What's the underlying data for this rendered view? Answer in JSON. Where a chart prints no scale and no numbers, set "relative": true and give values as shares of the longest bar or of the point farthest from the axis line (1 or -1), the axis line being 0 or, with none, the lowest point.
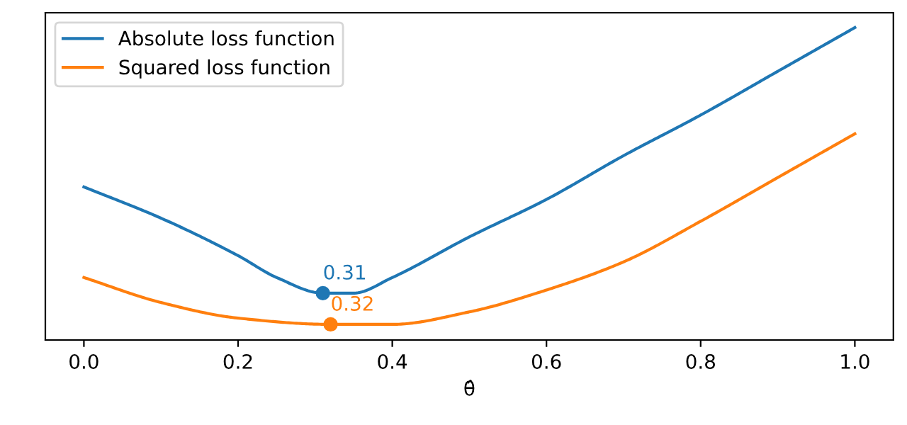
{
  "chart_data": {
    "type": "line",
    "relative": true,
    "xlabel": "θ̂",
    "xlim": [
      -0.05,
      1.05
    ],
    "xticks": [
      {
        "value": 0,
        "label": "0.0"
      },
      {
        "value": 0.2,
        "label": "0.2"
      },
      {
        "value": 0.4,
        "label": "0.4"
      },
      {
        "value": 0.6,
        "label": "0.6"
      },
      {
        "value": 0.8,
        "label": "0.8"
      },
      {
        "value": 1,
        "label": "1.0"
      }
    ],
    "tick_labels": "x",
    "grid": false,
    "legend": "top left",
    "marker": "none",
    "line_style": "solid",
    "series": [
      {
        "name": "Absolute loss function",
        "color": "#1f77b4",
        "x": [
          0,
          0.1,
          0.2,
          0.25,
          0.31,
          0.35,
          0.4,
          0.5,
          0.6,
          0.7,
          0.8,
          0.9,
          1.0
        ],
        "values": [
          0.49,
          0.39,
          0.27,
          0.2,
          0.15,
          0.15,
          0.2,
          0.33,
          0.45,
          0.59,
          0.72,
          0.86,
          1.0
        ]
      },
      {
        "name": "Squared loss function",
        "color": "#ff7f0e",
        "x": [
          0,
          0.1,
          0.2,
          0.32,
          0.4,
          0.5,
          0.6,
          0.7,
          0.8,
          0.9,
          1.0
        ],
        "values": [
          0.2,
          0.12,
          0.07,
          0.05,
          0.05,
          0.09,
          0.16,
          0.25,
          0.38,
          0.52,
          0.66
        ]
      },
      {
        "type": "scatter",
        "marker": "circle",
        "color": "#1f77b4",
        "x": [
          0.31
        ],
        "values": [
          0.15
        ]
      },
      {
        "type": "scatter",
        "marker": "circle",
        "color": "#ff7f0e",
        "x": [
          0.32
        ],
        "values": [
          0.05
        ]
      }
    ],
    "annotations": [
      {
        "text": "0.31",
        "x": 0.31,
        "y": 0.15
      },
      {
        "text": "0.32",
        "x": 0.32,
        "y": 0.05
      }
    ]
  }
}
